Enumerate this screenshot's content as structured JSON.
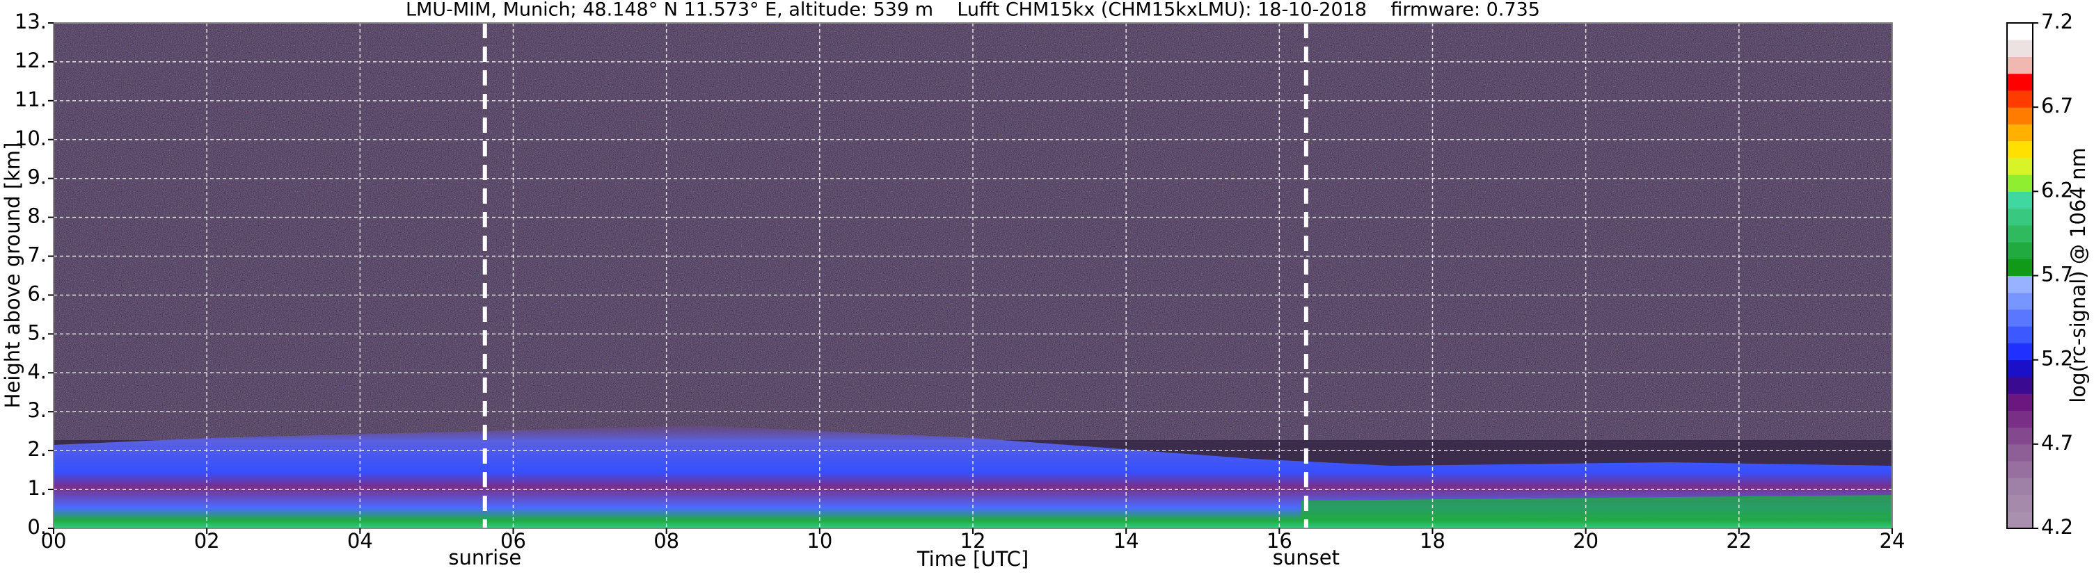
{
  "chart_data": {
    "type": "heatmap",
    "title": "LMU-MIM, Munich; 48.148° N 11.573° E, altitude: 539 m    Lufft CHM15kx (CHM15kxLMU): 18-10-2018    firmware: 0.735",
    "x_label": "Time [UTC]",
    "y_label": "Height above ground [km]",
    "xlim": [
      0,
      24
    ],
    "xticks": [
      {
        "value": 0,
        "label": "00"
      },
      {
        "value": 2,
        "label": "02"
      },
      {
        "value": 4,
        "label": "04"
      },
      {
        "value": 6,
        "label": "06"
      },
      {
        "value": 8,
        "label": "08"
      },
      {
        "value": 10,
        "label": "10"
      },
      {
        "value": 12,
        "label": "12"
      },
      {
        "value": 14,
        "label": "14"
      },
      {
        "value": 16,
        "label": "16"
      },
      {
        "value": 18,
        "label": "18"
      },
      {
        "value": 20,
        "label": "20"
      },
      {
        "value": 22,
        "label": "22"
      },
      {
        "value": 24,
        "label": "24"
      }
    ],
    "ylim": [
      0,
      13
    ],
    "yticks": [
      {
        "value": 0,
        "label": "0."
      },
      {
        "value": 1,
        "label": "1."
      },
      {
        "value": 2,
        "label": "2."
      },
      {
        "value": 3,
        "label": "3."
      },
      {
        "value": 4,
        "label": "4."
      },
      {
        "value": 5,
        "label": "5."
      },
      {
        "value": 6,
        "label": "6."
      },
      {
        "value": 7,
        "label": "7."
      },
      {
        "value": 8,
        "label": "8."
      },
      {
        "value": 9,
        "label": "9."
      },
      {
        "value": 10,
        "label": "10."
      },
      {
        "value": 11,
        "label": "11."
      },
      {
        "value": 12,
        "label": "12."
      },
      {
        "value": 13,
        "label": "13."
      }
    ],
    "grid": true,
    "annotations": [
      {
        "x": 5.63,
        "label": "sunrise"
      },
      {
        "x": 16.35,
        "label": "sunset"
      }
    ],
    "colorbar": {
      "label": "log(rc-signal) @ 1064 nm",
      "lim": [
        4.2,
        7.2
      ],
      "ticks": [
        4.2,
        4.7,
        5.2,
        5.7,
        6.2,
        6.7,
        7.2
      ],
      "colors": [
        "#a990ae",
        "#a68aab",
        "#9f80a6",
        "#97709f",
        "#8e5e97",
        "#84488e",
        "#7a2f87",
        "#6c1680",
        "#3a0a90",
        "#1a10c8",
        "#2030ff",
        "#3c58ff",
        "#5a78ff",
        "#7896ff",
        "#98b2ff",
        "#109a18",
        "#20aa40",
        "#30ba60",
        "#38c880",
        "#40d8a0",
        "#90ee30",
        "#d8f428",
        "#ffe000",
        "#ffb000",
        "#ff7c00",
        "#ff3c00",
        "#ff0000",
        "#f0b8b0",
        "#ece2e2",
        "#ffffff"
      ]
    }
  }
}
